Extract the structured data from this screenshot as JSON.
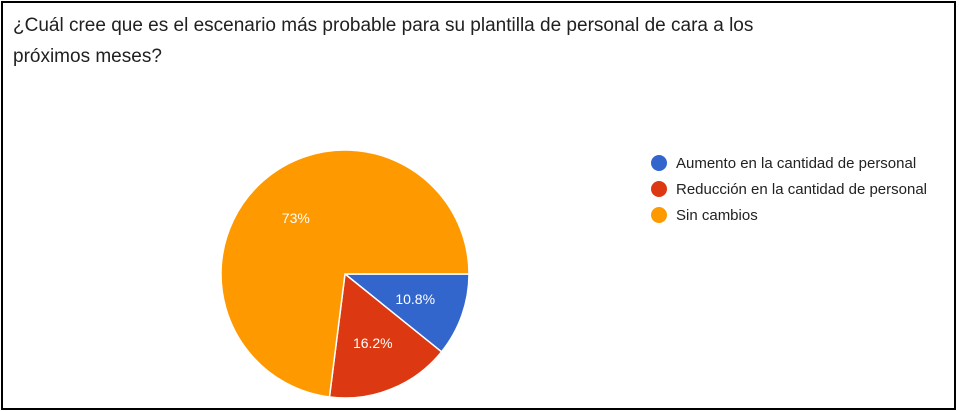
{
  "title": "¿Cuál cree que es el escenario más probable para su plantilla de personal de cara a los próximos meses?",
  "chart_data": {
    "type": "pie",
    "start": "3 o'clock, clockwise",
    "slices": [
      {
        "name": "Aumento en la cantidad de personal",
        "value": 10.8,
        "label": "10.8%",
        "color": "#3366cc"
      },
      {
        "name": "Reducción en la cantidad de personal",
        "value": 16.2,
        "label": "16.2%",
        "color": "#dc3912"
      },
      {
        "name": "Sin cambios",
        "value": 73,
        "label": "73%",
        "color": "#ff9900"
      }
    ],
    "legend_position": "right"
  }
}
